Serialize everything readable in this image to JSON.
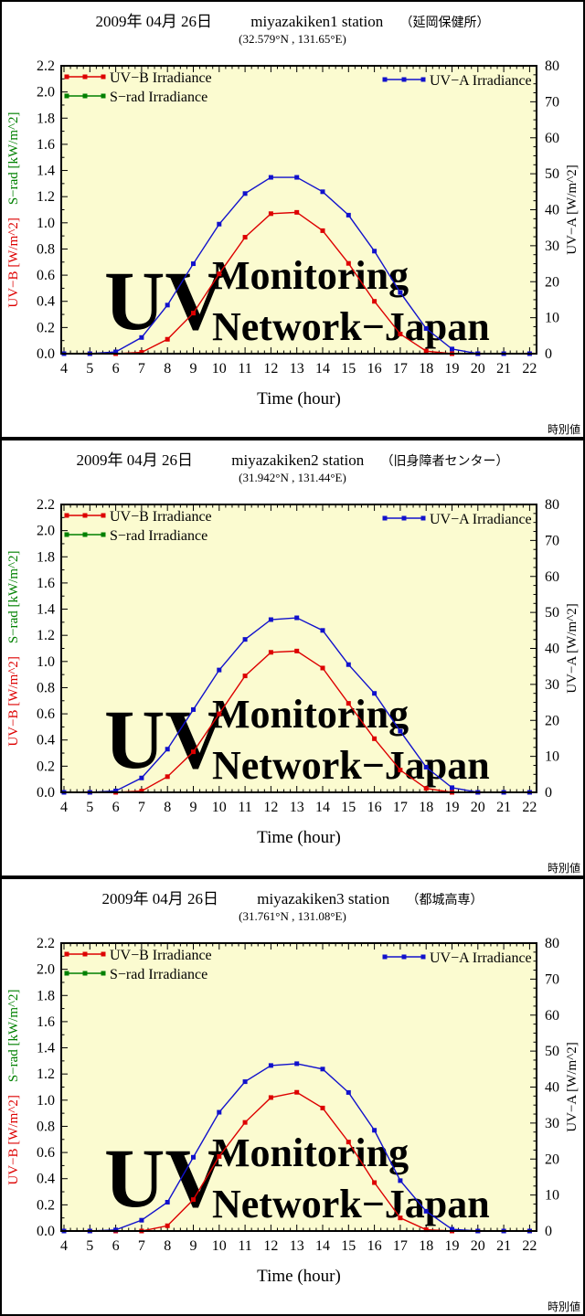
{
  "style": {
    "plot_bg": "#fbfbd0",
    "watermark_color": "#eeeee2",
    "uvb_color": "#dd0000",
    "srad_color": "#008000",
    "uva_color": "#1111cc"
  },
  "chart_data": [
    {
      "type": "line",
      "title_date": "2009年 04月 26日",
      "title_station": "miyazakiken1 station",
      "title_site": "（延岡保健所）",
      "subtitle": "(32.579°N , 131.65°E)",
      "xlabel": "Time (hour)",
      "corner_note": "時別値",
      "watermark": [
        "UV",
        "Monitoring",
        "Network−Japan"
      ],
      "x": [
        4,
        5,
        6,
        7,
        8,
        9,
        10,
        11,
        12,
        13,
        14,
        15,
        16,
        17,
        18,
        19,
        20,
        21,
        22
      ],
      "x_ticks": [
        "4",
        "5",
        "6",
        "7",
        "8",
        "9",
        "10",
        "11",
        "12",
        "13",
        "14",
        "15",
        "16",
        "17",
        "18",
        "19",
        "20",
        "21",
        "22"
      ],
      "y_left": {
        "labels": [
          "UV−B [W/m^2]",
          "S−rad [kW/m^2]"
        ],
        "colors": [
          "#dd0000",
          "#008000"
        ],
        "range": [
          0,
          2.2
        ],
        "ticks": [
          "0.0",
          "0.2",
          "0.4",
          "0.6",
          "0.8",
          "1.0",
          "1.2",
          "1.4",
          "1.6",
          "1.8",
          "2.0",
          "2.2"
        ]
      },
      "y_right": {
        "label": "UV−A [W/m^2]",
        "color": "#1111cc",
        "range": [
          0,
          80
        ],
        "ticks": [
          "0",
          "10",
          "20",
          "30",
          "40",
          "50",
          "60",
          "70",
          "80"
        ]
      },
      "legend_left": [
        "UV−B Irradiance",
        "S−rad Irradiance"
      ],
      "legend_right": [
        "UV−A Irradiance"
      ],
      "series": [
        {
          "name": "UV−B Irradiance",
          "axis": "left",
          "color": "#dd0000",
          "values": [
            0,
            0,
            0,
            0.01,
            0.11,
            0.31,
            0.61,
            0.89,
            1.07,
            1.08,
            0.94,
            0.69,
            0.4,
            0.15,
            0.02,
            0,
            0,
            0,
            0
          ]
        },
        {
          "name": "S−rad Irradiance",
          "axis": "left",
          "color": "#008000",
          "values": []
        },
        {
          "name": "UV−A Irradiance",
          "axis": "right",
          "color": "#1111cc",
          "values": [
            0,
            0,
            0.5,
            4.5,
            13.5,
            25,
            36,
            44.5,
            49,
            49,
            45,
            38.5,
            28.5,
            17,
            7,
            1.3,
            0,
            0,
            0
          ]
        }
      ]
    },
    {
      "type": "line",
      "title_date": "2009年 04月 26日",
      "title_station": "miyazakiken2 station",
      "title_site": "（旧身障者センター）",
      "subtitle": "(31.942°N , 131.44°E)",
      "xlabel": "Time (hour)",
      "corner_note": "時別値",
      "watermark": [
        "UV",
        "Monitoring",
        "Network−Japan"
      ],
      "x": [
        4,
        5,
        6,
        7,
        8,
        9,
        10,
        11,
        12,
        13,
        14,
        15,
        16,
        17,
        18,
        19,
        20,
        21,
        22
      ],
      "x_ticks": [
        "4",
        "5",
        "6",
        "7",
        "8",
        "9",
        "10",
        "11",
        "12",
        "13",
        "14",
        "15",
        "16",
        "17",
        "18",
        "19",
        "20",
        "21",
        "22"
      ],
      "y_left": {
        "labels": [
          "UV−B [W/m^2]",
          "S−rad [kW/m^2]"
        ],
        "colors": [
          "#dd0000",
          "#008000"
        ],
        "range": [
          0,
          2.2
        ],
        "ticks": [
          "0.0",
          "0.2",
          "0.4",
          "0.6",
          "0.8",
          "1.0",
          "1.2",
          "1.4",
          "1.6",
          "1.8",
          "2.0",
          "2.2"
        ]
      },
      "y_right": {
        "label": "UV−A [W/m^2]",
        "color": "#1111cc",
        "range": [
          0,
          80
        ],
        "ticks": [
          "0",
          "10",
          "20",
          "30",
          "40",
          "50",
          "60",
          "70",
          "80"
        ]
      },
      "legend_left": [
        "UV−B Irradiance",
        "S−rad Irradiance"
      ],
      "legend_right": [
        "UV−A Irradiance"
      ],
      "series": [
        {
          "name": "UV−B Irradiance",
          "axis": "left",
          "color": "#dd0000",
          "values": [
            0,
            0,
            0,
            0.01,
            0.12,
            0.31,
            0.6,
            0.89,
            1.07,
            1.08,
            0.95,
            0.68,
            0.41,
            0.17,
            0.03,
            0,
            0,
            0,
            0
          ]
        },
        {
          "name": "S−rad Irradiance",
          "axis": "left",
          "color": "#008000",
          "values": []
        },
        {
          "name": "UV−A Irradiance",
          "axis": "right",
          "color": "#1111cc",
          "values": [
            0,
            0,
            0.4,
            4,
            12,
            23,
            34,
            42.5,
            48,
            48.5,
            45,
            35.5,
            27.5,
            17,
            7,
            1.3,
            0,
            0,
            0
          ]
        }
      ]
    },
    {
      "type": "line",
      "title_date": "2009年 04月 26日",
      "title_station": "miyazakiken3 station",
      "title_site": "（都城高専）",
      "subtitle": "(31.761°N , 131.08°E)",
      "xlabel": "Time (hour)",
      "corner_note": "時別値",
      "watermark": [
        "UV",
        "Monitoring",
        "Network−Japan"
      ],
      "x": [
        4,
        5,
        6,
        7,
        8,
        9,
        10,
        11,
        12,
        13,
        14,
        15,
        16,
        17,
        18,
        19,
        20,
        21,
        22
      ],
      "x_ticks": [
        "4",
        "5",
        "6",
        "7",
        "8",
        "9",
        "10",
        "11",
        "12",
        "13",
        "14",
        "15",
        "16",
        "17",
        "18",
        "19",
        "20",
        "21",
        "22"
      ],
      "y_left": {
        "labels": [
          "UV−B [W/m^2]",
          "S−rad [kW/m^2]"
        ],
        "colors": [
          "#dd0000",
          "#008000"
        ],
        "range": [
          0,
          2.2
        ],
        "ticks": [
          "0.0",
          "0.2",
          "0.4",
          "0.6",
          "0.8",
          "1.0",
          "1.2",
          "1.4",
          "1.6",
          "1.8",
          "2.0",
          "2.2"
        ]
      },
      "y_right": {
        "label": "UV−A [W/m^2]",
        "color": "#1111cc",
        "range": [
          0,
          80
        ],
        "ticks": [
          "0",
          "10",
          "20",
          "30",
          "40",
          "50",
          "60",
          "70",
          "80"
        ]
      },
      "legend_left": [
        "UV−B Irradiance",
        "S−rad Irradiance"
      ],
      "legend_right": [
        "UV−A Irradiance"
      ],
      "series": [
        {
          "name": "UV−B Irradiance",
          "axis": "left",
          "color": "#dd0000",
          "values": [
            0,
            0,
            0,
            0,
            0.04,
            0.24,
            0.57,
            0.83,
            1.02,
            1.06,
            0.94,
            0.68,
            0.37,
            0.1,
            0.01,
            0,
            0,
            0,
            0
          ]
        },
        {
          "name": "S−rad Irradiance",
          "axis": "left",
          "color": "#008000",
          "values": []
        },
        {
          "name": "UV−A Irradiance",
          "axis": "right",
          "color": "#1111cc",
          "values": [
            0,
            0,
            0.3,
            3,
            8,
            20.5,
            33,
            41.5,
            46,
            46.5,
            45,
            38.5,
            28,
            14,
            5.5,
            0.5,
            0,
            0,
            0
          ]
        }
      ]
    }
  ]
}
